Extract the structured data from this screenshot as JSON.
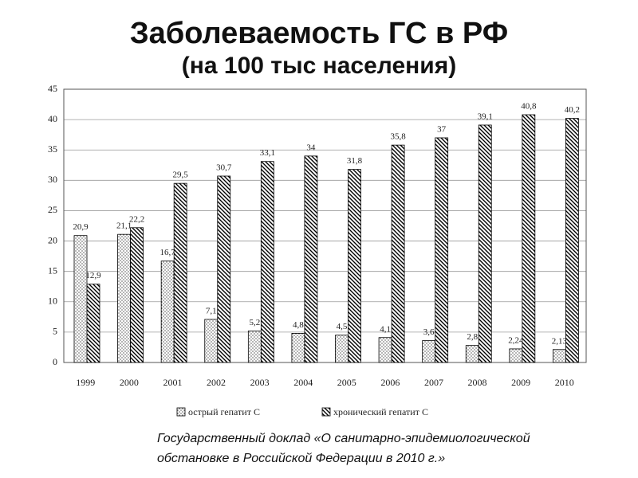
{
  "chart_data": {
    "type": "bar",
    "title": "Заболеваемость ГС в РФ",
    "subtitle": "(на 100 тыс населения)",
    "categories": [
      "1999",
      "2000",
      "2001",
      "2002",
      "2003",
      "2004",
      "2005",
      "2006",
      "2007",
      "2008",
      "2009",
      "2010"
    ],
    "series": [
      {
        "name": "острый гепатит С",
        "color": "#000000",
        "pattern": "dots",
        "values": [
          20.9,
          21.1,
          16.7,
          7.1,
          5.2,
          4.8,
          4.5,
          4.1,
          3.6,
          2.8,
          2.24,
          2.13
        ],
        "value_labels": [
          "20,9",
          "21,1",
          "16,7",
          "7,1",
          "5,2",
          "4,8",
          "4,5",
          "4,1",
          "3,6",
          "2,8",
          "2,24",
          "2,13"
        ]
      },
      {
        "name": "хронический гепатит С",
        "color": "#000000",
        "pattern": "hatch",
        "values": [
          12.9,
          22.2,
          29.5,
          30.7,
          33.1,
          34,
          31.8,
          35.8,
          37,
          39.1,
          40.8,
          40.2
        ],
        "value_labels": [
          "12,9",
          "22,2",
          "29,5",
          "30,7",
          "33,1",
          "34",
          "31,8",
          "35,8",
          "37",
          "39,1",
          "40,8",
          "40,2"
        ]
      }
    ],
    "ylim": [
      0,
      45
    ],
    "yticks": [
      0,
      5,
      10,
      15,
      20,
      25,
      30,
      35,
      40,
      45
    ],
    "grid": true,
    "source": [
      "Государственный доклад «О санитарно-эпидемиологической",
      "обстановке в Российской Федерации в 2010 г.»"
    ]
  }
}
